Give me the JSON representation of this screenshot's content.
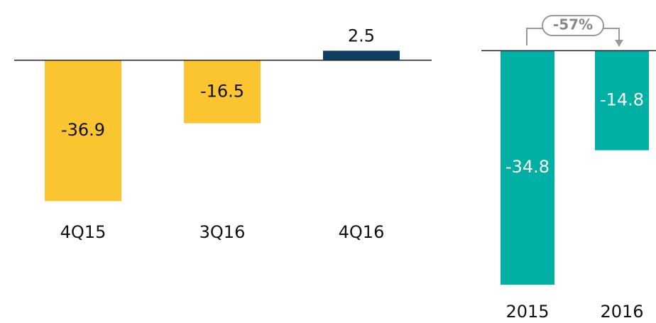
{
  "chart_data": [
    {
      "type": "bar",
      "categories": [
        "4Q15",
        "3Q16",
        "4Q16"
      ],
      "values": [
        -36.9,
        -16.5,
        2.5
      ],
      "colors": [
        "#fbc531",
        "#fbc531",
        "#0e3f60"
      ],
      "label_colors": [
        "#111111",
        "#111111",
        "#111111"
      ],
      "ylim": [
        -40,
        5
      ]
    },
    {
      "type": "bar",
      "categories": [
        "2015",
        "2016"
      ],
      "values": [
        -34.8,
        -14.8
      ],
      "colors": [
        "#00b0a4",
        "#00b0a4"
      ],
      "label_colors": [
        "#ffffff",
        "#ffffff"
      ],
      "ylim": [
        -35,
        5
      ],
      "annotation": "-57%"
    }
  ]
}
